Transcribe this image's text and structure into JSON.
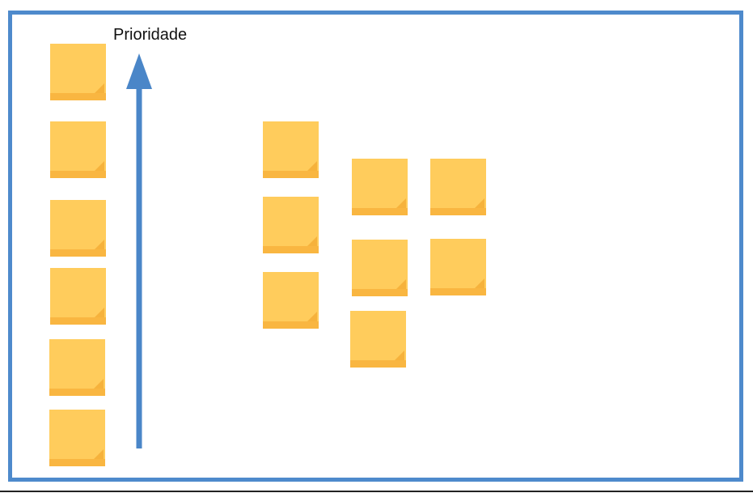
{
  "axis": {
    "label": "Prioridade"
  },
  "colors": {
    "frame": "#4e8acc",
    "arrow": "#4a86c8",
    "note_face": "#ffcc5c",
    "note_bottom": "#f9b641",
    "note_fold": "#f6b23c"
  },
  "groups": {
    "ranked_column": {
      "note_count": 6
    },
    "unranked_cluster": {
      "note_count": 8
    }
  }
}
